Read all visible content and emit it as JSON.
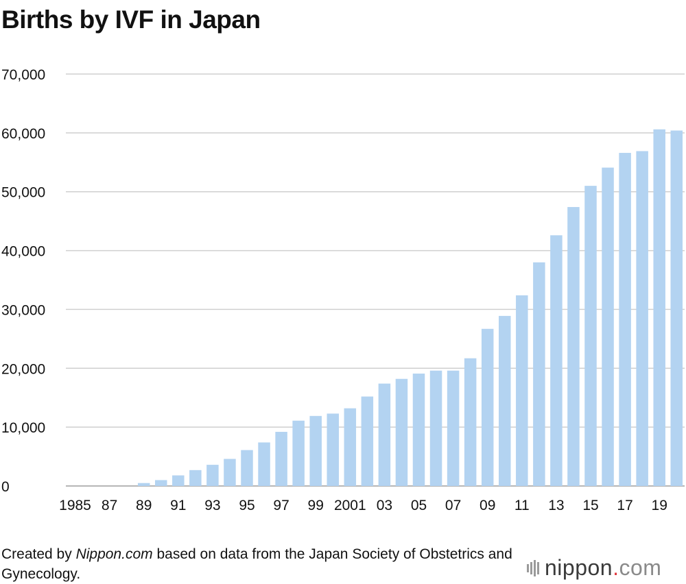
{
  "chart_data": {
    "type": "bar",
    "title": "Births by IVF in Japan",
    "xlabel": "",
    "ylabel": "",
    "ylim": [
      0,
      70000
    ],
    "yticks": [
      0,
      10000,
      20000,
      30000,
      40000,
      50000,
      60000,
      70000
    ],
    "ytick_labels": [
      "0",
      "10,000",
      "20,000",
      "30,000",
      "40,000",
      "50,000",
      "60,000",
      "70,000"
    ],
    "grid": true,
    "bar_color": "#b3d3f1",
    "categories": [
      "1985",
      "1986",
      "1987",
      "1988",
      "1989",
      "1990",
      "1991",
      "1992",
      "1993",
      "1994",
      "1995",
      "1996",
      "1997",
      "1998",
      "1999",
      "2000",
      "2001",
      "2002",
      "2003",
      "2004",
      "2005",
      "2006",
      "2007",
      "2008",
      "2009",
      "2010",
      "2011",
      "2012",
      "2013",
      "2014",
      "2015",
      "2016",
      "2017",
      "2018",
      "2019",
      "2020"
    ],
    "values": [
      0,
      0,
      0,
      0,
      500,
      1000,
      1800,
      2700,
      3600,
      4600,
      6100,
      7400,
      9200,
      11100,
      11900,
      12300,
      13200,
      15200,
      17400,
      18200,
      19100,
      19600,
      19600,
      21700,
      26700,
      28900,
      32400,
      38000,
      42600,
      47400,
      51000,
      54100,
      56600,
      56900,
      60600,
      60400
    ],
    "tick_labels": [
      "1985",
      "87",
      "89",
      "91",
      "93",
      "95",
      "97",
      "99",
      "2001",
      "03",
      "05",
      "07",
      "09",
      "11",
      "13",
      "15",
      "17",
      "19"
    ],
    "tick_indices": [
      0,
      2,
      4,
      6,
      8,
      10,
      12,
      14,
      16,
      18,
      20,
      22,
      24,
      26,
      28,
      30,
      32,
      34
    ]
  },
  "source": {
    "prefix": "Created by ",
    "site": "Nippon.com",
    "suffix": " based on data from the Japan Society of Obstetrics and Gynecology."
  },
  "brand": {
    "name": "nippon",
    "dot": ".",
    "tld": "com"
  }
}
